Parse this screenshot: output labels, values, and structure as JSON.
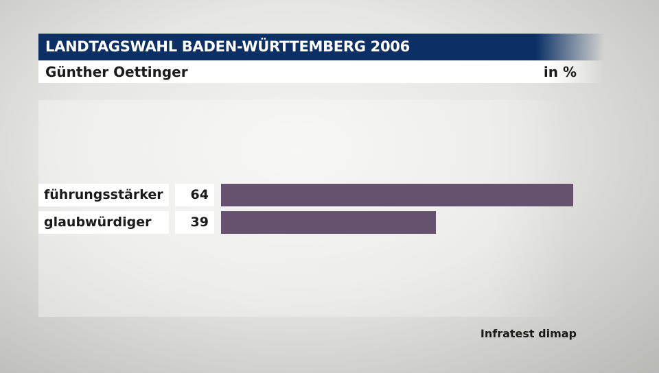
{
  "header": {
    "title": "LANDTAGSWAHL BADEN-WÜRTTEMBERG 2006",
    "subtitle": "Günther Oettinger",
    "unit": "in %"
  },
  "colors": {
    "title_bg": "#0c3066",
    "bar": "#66516e"
  },
  "source": "Infratest dimap",
  "chart_data": {
    "type": "bar",
    "orientation": "horizontal",
    "title": "LANDTAGSWAHL BADEN-WÜRTTEMBERG 2006",
    "subtitle": "Günther Oettinger",
    "unit": "in %",
    "categories": [
      "führungsstärker",
      "glaubwürdiger"
    ],
    "values": [
      64,
      39
    ],
    "value_labels": [
      "64",
      "39"
    ],
    "xlim": [
      0,
      64
    ],
    "grid": false,
    "legend": "none"
  }
}
